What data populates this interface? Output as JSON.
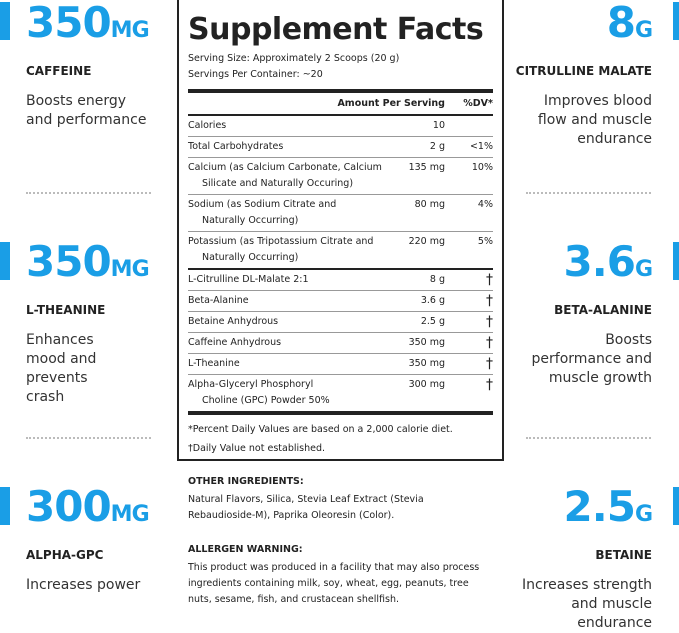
{
  "accent": "#1a9ee6",
  "stats_left": [
    {
      "value": "350",
      "unit": "MG",
      "label": "CAFFEINE",
      "desc": "Boosts energy and performance"
    },
    {
      "value": "350",
      "unit": "MG",
      "label": "L-THEANINE",
      "desc": "Enhances mood and prevents crash"
    },
    {
      "value": "300",
      "unit": "MG",
      "label": "ALPHA-GPC",
      "desc": "Increases power"
    }
  ],
  "stats_right": [
    {
      "value": "8",
      "unit": "G",
      "label": "CITRULLINE MALATE",
      "desc": "Improves blood flow and muscle endurance"
    },
    {
      "value": "3.6",
      "unit": "G",
      "label": "BETA-ALANINE",
      "desc": "Boosts performance and muscle growth"
    },
    {
      "value": "2.5",
      "unit": "G",
      "label": "BETAINE",
      "desc": "Increases strength and muscle endurance"
    }
  ],
  "panel": {
    "title": "Supplement Facts",
    "serving_size": "Serving Size: Approximately 2 Scoops (20 g)",
    "servings_per": "Servings Per Container: ~20",
    "col_amount": "Amount Per Serving",
    "col_dv": "%DV*",
    "rows": [
      {
        "name": "Calories",
        "name2": "",
        "amount": "10",
        "dv": ""
      },
      {
        "name": "Total Carbohydrates",
        "name2": "",
        "amount": "2 g",
        "dv": "<1%"
      },
      {
        "name": "Calcium (as Calcium Carbonate, Calcium",
        "name2": "Silicate and Naturally Occuring)",
        "amount": "135 mg",
        "dv": "10%"
      },
      {
        "name": "Sodium (as Sodium Citrate and",
        "name2": "Naturally Occurring)",
        "amount": "80 mg",
        "dv": "4%"
      },
      {
        "name": "Potassium (as Tripotassium Citrate and",
        "name2": "Naturally Occurring)",
        "amount": "220 mg",
        "dv": "5%"
      },
      {
        "name": "L-Citrulline DL-Malate 2:1",
        "name2": "",
        "amount": "8 g",
        "dv": "†"
      },
      {
        "name": "Beta-Alanine",
        "name2": "",
        "amount": "3.6 g",
        "dv": "†"
      },
      {
        "name": "Betaine Anhydrous",
        "name2": "",
        "amount": "2.5 g",
        "dv": "†"
      },
      {
        "name": "Caffeine Anhydrous",
        "name2": "",
        "amount": "350 mg",
        "dv": "†"
      },
      {
        "name": "L-Theanine",
        "name2": "",
        "amount": "350 mg",
        "dv": "†"
      },
      {
        "name": "Alpha-Glyceryl Phosphoryl",
        "name2": "Choline (GPC) Powder 50%",
        "amount": "300 mg",
        "dv": "†"
      }
    ],
    "footnote1": "*Percent Daily Values are based on a 2,000 calorie diet.",
    "footnote2": "†Daily Value not established."
  },
  "other": {
    "title": "OTHER INGREDIENTS:",
    "text": "Natural Flavors, Silica, Stevia Leaf Extract (Stevia Rebaudioside-M), Paprika Oleoresin (Color)."
  },
  "allergen": {
    "title": "ALLERGEN WARNING:",
    "text": "This product was produced in a facility that may also process ingredients containing milk, soy, wheat, egg, peanuts, tree nuts, sesame, fish, and crustacean shellfish."
  }
}
